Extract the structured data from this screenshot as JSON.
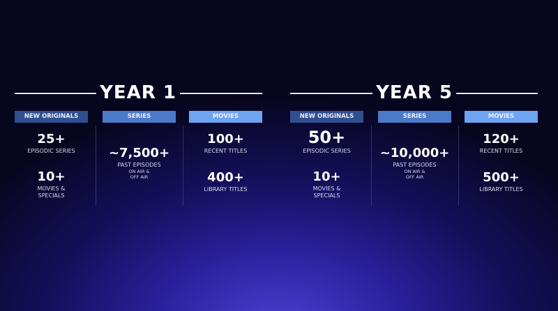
{
  "years": [
    {
      "title": "YEAR 1",
      "new_originals": {
        "header": "NEW ORIGINALS",
        "items": [
          {
            "value": "25+",
            "label": "EPISODIC SERIES"
          },
          {
            "value": "10+",
            "label": "MOVIES & SPECIALS"
          }
        ]
      },
      "series": {
        "header": "SERIES",
        "value": "~7,500+",
        "label": "PAST EPISODES",
        "sublabel": "ON AIR & OFF AIR"
      },
      "movies": {
        "header": "MOVIES",
        "items": [
          {
            "value": "100+",
            "label": "RECENT TITLES"
          },
          {
            "value": "400+",
            "label": "LIBRARY TITLES"
          }
        ]
      }
    },
    {
      "title": "YEAR 5",
      "new_originals": {
        "header": "NEW ORIGINALS",
        "items": [
          {
            "value": "50+",
            "label": "EPISODIC SERIES"
          },
          {
            "value": "10+",
            "label": "MOVIES & SPECIALS"
          }
        ]
      },
      "series": {
        "header": "SERIES",
        "value": "~10,000+",
        "label": "PAST EPISODES",
        "sublabel": "ON AIR & OFF AIR"
      },
      "movies": {
        "header": "MOVIES",
        "items": [
          {
            "value": "120+",
            "label": "RECENT TITLES"
          },
          {
            "value": "500+",
            "label": "LIBRARY TITLES"
          }
        ]
      }
    }
  ],
  "colors": {
    "new_originals_header": "#2f4f90",
    "series_header": "#4b7ac9",
    "movies_header": "#6ea4f2"
  }
}
